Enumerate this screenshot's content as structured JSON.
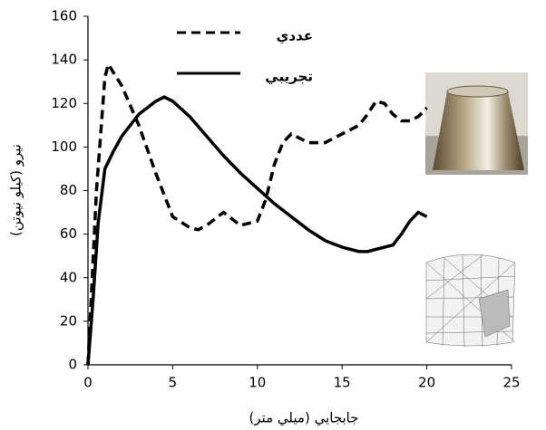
{
  "chart_data": {
    "type": "line",
    "x_label": "جابجايي (ميلي متر)",
    "y_label": "نيرو (كيلو نيوتن)",
    "xlim": [
      0,
      25
    ],
    "xticks": [
      0,
      5,
      10,
      15,
      20,
      25
    ],
    "ylim": [
      0,
      160
    ],
    "yticks": [
      0,
      20,
      40,
      60,
      80,
      100,
      120,
      140,
      160
    ],
    "legend": "upper left",
    "series": [
      {
        "name": "عددي",
        "color": "#000000",
        "linestyle": "dashed",
        "x": [
          0,
          0.5,
          1,
          1.2,
          2,
          3,
          4,
          5,
          6,
          6.5,
          7,
          7.5,
          8,
          8.5,
          9,
          10,
          10.5,
          11,
          11.5,
          12,
          13,
          14,
          15,
          16,
          16.5,
          17,
          17.5,
          18,
          18.5,
          19,
          19.5,
          20
        ],
        "values": [
          0,
          80,
          132,
          138,
          128,
          110,
          88,
          68,
          63,
          62,
          64,
          67,
          70,
          67,
          64,
          66,
          76,
          92,
          102,
          106,
          102,
          102,
          106,
          110,
          115,
          121,
          120,
          115,
          112,
          112,
          114,
          118
        ]
      },
      {
        "name": "تجريبي",
        "color": "#000000",
        "linestyle": "solid",
        "x": [
          0,
          0.3,
          0.6,
          1,
          1.5,
          2,
          3,
          4,
          4.5,
          5,
          6,
          7,
          8,
          9,
          10,
          11,
          12,
          13,
          14,
          15,
          16,
          16.5,
          17,
          17.5,
          18,
          18.5,
          19,
          19.5,
          20
        ],
        "values": [
          0,
          30,
          65,
          90,
          98,
          105,
          115,
          121,
          123,
          121,
          114,
          105,
          96,
          88,
          81,
          74,
          68,
          62,
          57,
          54,
          52,
          52,
          53,
          54,
          55,
          60,
          66,
          70,
          68
        ]
      }
    ]
  }
}
